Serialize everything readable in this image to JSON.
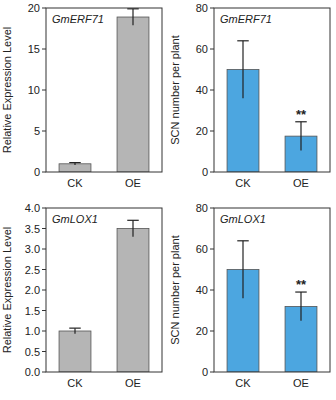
{
  "chart_data": [
    {
      "type": "bar",
      "title": "GmERF71",
      "y_label": "Relative Expression Level",
      "categories": [
        "CK",
        "OE"
      ],
      "values": [
        1.0,
        18.9
      ],
      "errors": [
        0.15,
        1.0
      ],
      "color": "#b5b5b5",
      "ylim": [
        0,
        20
      ],
      "yticks": [
        0,
        5,
        10,
        15,
        20
      ]
    },
    {
      "type": "bar",
      "title": "GmERF71",
      "y_label": "SCN number per plant",
      "categories": [
        "CK",
        "OE"
      ],
      "values": [
        50,
        17.5
      ],
      "errors": [
        14,
        7
      ],
      "color": "#4ca6e0",
      "ylim": [
        0,
        80
      ],
      "yticks": [
        0,
        20,
        40,
        60,
        80
      ],
      "annotations": [
        {
          "category": "OE",
          "text": "**"
        }
      ]
    },
    {
      "type": "bar",
      "title": "GmLOX1",
      "y_label": "Relative Expression Level",
      "categories": [
        "CK",
        "OE"
      ],
      "values": [
        1.0,
        3.5
      ],
      "errors": [
        0.07,
        0.2
      ],
      "color": "#b5b5b5",
      "ylim": [
        0,
        4
      ],
      "yticks": [
        {
          "value": 0,
          "label": "0.0"
        },
        {
          "value": 0.5,
          "label": "0.5"
        },
        {
          "value": 1,
          "label": "1.0"
        },
        {
          "value": 1.5,
          "label": "1.5"
        },
        {
          "value": 2,
          "label": "2.0"
        },
        {
          "value": 2.5,
          "label": "2.5"
        },
        {
          "value": 3,
          "label": "3.0"
        },
        {
          "value": 3.5,
          "label": "3.5"
        },
        {
          "value": 4,
          "label": "4.0"
        }
      ]
    },
    {
      "type": "bar",
      "title": "GmLOX1",
      "y_label": "SCN number per plant",
      "categories": [
        "CK",
        "OE"
      ],
      "values": [
        50,
        32
      ],
      "errors": [
        14,
        7
      ],
      "color": "#4ca6e0",
      "ylim": [
        0,
        80
      ],
      "yticks": [
        0,
        20,
        40,
        60,
        80
      ],
      "annotations": [
        {
          "category": "OE",
          "text": "**"
        }
      ]
    }
  ]
}
